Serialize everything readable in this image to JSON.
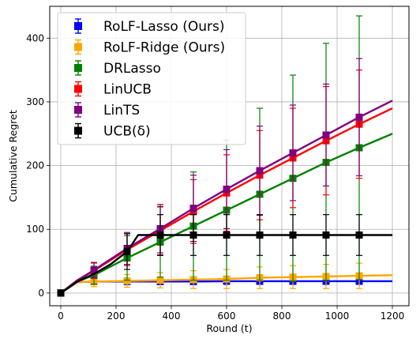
{
  "chart_data": {
    "type": "line",
    "title": "",
    "xlabel": "Round (t)",
    "ylabel": "Cumulative Regret",
    "xlim": [
      -40,
      1260
    ],
    "ylim": [
      -20,
      450
    ],
    "xticks": [
      0,
      200,
      400,
      600,
      800,
      1000,
      1200
    ],
    "yticks": [
      0,
      100,
      200,
      300,
      400
    ],
    "grid": true,
    "legend_position": "top-left",
    "series": [
      {
        "name": "RoLF-Lasso (Ours)",
        "color": "#0000ff",
        "marker": "square",
        "line_x": [
          0,
          60,
          120,
          240,
          360,
          480,
          600,
          720,
          840,
          960,
          1080,
          1200
        ],
        "line_y": [
          0,
          17,
          18,
          18,
          18,
          18,
          18.5,
          18.5,
          18.5,
          18.5,
          18.5,
          18.5
        ],
        "points_x": [
          0,
          120,
          240,
          360,
          480,
          600,
          720,
          840,
          960,
          1080
        ],
        "points_y": [
          0,
          18,
          18,
          18,
          18,
          18.5,
          18.5,
          18.5,
          18.5,
          18.5
        ],
        "err": [
          0,
          5,
          5,
          5,
          5,
          5,
          5,
          5,
          5,
          5
        ]
      },
      {
        "name": "RoLF-Ridge (Ours)",
        "color": "#ffa500",
        "marker": "square",
        "line_x": [
          0,
          60,
          120,
          240,
          360,
          480,
          600,
          720,
          840,
          960,
          1080,
          1200
        ],
        "line_y": [
          0,
          17,
          18,
          19,
          20,
          21,
          22,
          24,
          25,
          26,
          27,
          28
        ],
        "points_x": [
          0,
          120,
          240,
          360,
          480,
          600,
          720,
          840,
          960,
          1080
        ],
        "points_y": [
          0,
          18,
          19,
          20,
          21,
          22,
          24,
          25,
          26,
          27
        ],
        "err": [
          0,
          8,
          10,
          12,
          14,
          15,
          17,
          18,
          19,
          20
        ]
      },
      {
        "name": "DRLasso",
        "color": "#008000",
        "marker": "square",
        "line_x": [
          0,
          60,
          120,
          240,
          360,
          480,
          600,
          720,
          840,
          960,
          1080,
          1200
        ],
        "line_y": [
          0,
          18,
          28,
          55,
          80,
          105,
          130,
          155,
          180,
          205,
          228,
          250
        ],
        "points_x": [
          0,
          120,
          240,
          360,
          480,
          600,
          720,
          840,
          960,
          1080
        ],
        "points_y": [
          0,
          28,
          55,
          80,
          105,
          130,
          155,
          180,
          205,
          228
        ],
        "err": [
          0,
          14,
          35,
          55,
          85,
          110,
          135,
          162,
          187,
          207
        ]
      },
      {
        "name": "LinUCB",
        "color": "#ff0000",
        "marker": "square",
        "line_x": [
          0,
          60,
          120,
          240,
          360,
          480,
          600,
          720,
          840,
          960,
          1080,
          1200
        ],
        "line_y": [
          0,
          20,
          35,
          68,
          98,
          128,
          157,
          185,
          212,
          239,
          265,
          290
        ],
        "points_x": [
          0,
          120,
          240,
          360,
          480,
          600,
          720,
          840,
          960,
          1080
        ],
        "points_y": [
          0,
          35,
          68,
          98,
          128,
          157,
          185,
          212,
          239,
          265
        ],
        "err": [
          0,
          12,
          25,
          38,
          50,
          60,
          70,
          78,
          85,
          85
        ]
      },
      {
        "name": "LinTS",
        "color": "#800080",
        "marker": "square",
        "line_x": [
          0,
          60,
          120,
          240,
          360,
          480,
          600,
          720,
          840,
          960,
          1080,
          1200
        ],
        "line_y": [
          0,
          20,
          36,
          70,
          101,
          133,
          163,
          192,
          220,
          248,
          276,
          302
        ],
        "points_x": [
          0,
          120,
          240,
          360,
          480,
          600,
          720,
          840,
          960,
          1080
        ],
        "points_y": [
          0,
          36,
          70,
          101,
          133,
          163,
          192,
          220,
          248,
          276
        ],
        "err": [
          0,
          12,
          25,
          38,
          52,
          62,
          70,
          75,
          80,
          92
        ]
      },
      {
        "name": "UCB(δ)",
        "color": "#000000",
        "marker": "square",
        "line_x": [
          0,
          60,
          120,
          180,
          240,
          280,
          360,
          480,
          600,
          720,
          840,
          960,
          1080,
          1200
        ],
        "line_y": [
          0,
          18,
          30,
          45,
          65,
          91,
          91,
          91,
          91,
          91,
          91,
          91,
          91,
          91
        ],
        "points_x": [
          0,
          240,
          360,
          480,
          600,
          720,
          840,
          960,
          1080
        ],
        "points_y": [
          0,
          65,
          91,
          91,
          91,
          91,
          91,
          91,
          91
        ],
        "err": [
          0,
          28,
          32,
          32,
          32,
          32,
          32,
          32,
          32
        ]
      }
    ]
  }
}
